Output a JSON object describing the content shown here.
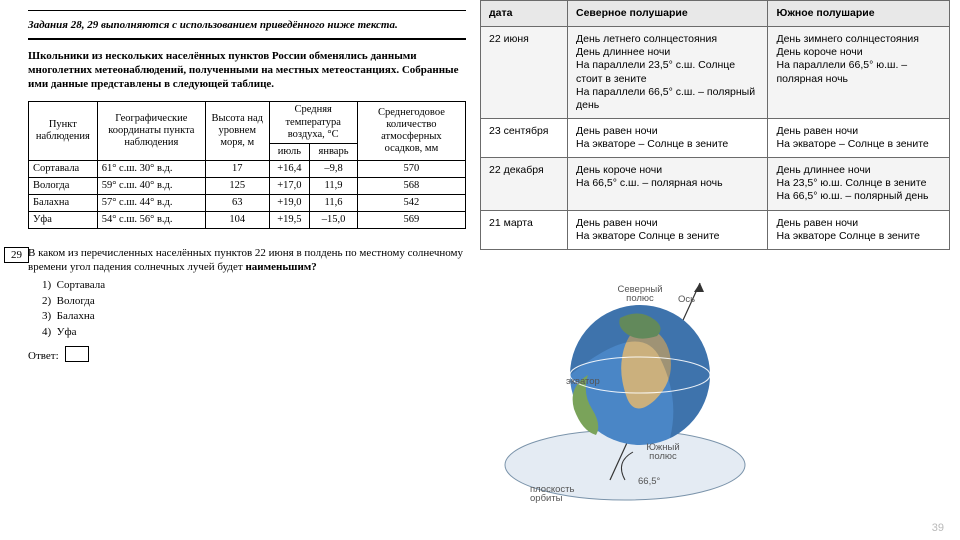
{
  "left": {
    "instruction": "Задания 28, 29 выполняются с использованием приведённого ниже текста.",
    "intro": "Школьники из нескольких населённых пунктов России обменялись данными многолетних метеонаблюдений, полученными на местных метеостанциях. Собранные ими данные представлены в следующей таблице.",
    "table": {
      "headers": {
        "c1": "Пункт наблюдения",
        "c2": "Географические координаты пункта наблюдения",
        "c3": "Высота над уровнем моря, м",
        "c4": "Средняя температура воздуха, °C",
        "c4a": "июль",
        "c4b": "январь",
        "c5": "Среднегодовое количество атмосферных осадков, мм"
      },
      "rows": [
        {
          "name": "Сортавала",
          "coord": "61° с.ш. 30° в.д.",
          "h": "17",
          "jul": "+16,4",
          "jan": "–9,8",
          "p": "570"
        },
        {
          "name": "Вологда",
          "coord": "59° с.ш. 40° в.д.",
          "h": "125",
          "jul": "+17,0",
          "jan": "11,9",
          "p": "568"
        },
        {
          "name": "Балахна",
          "coord": "57° с.ш. 44° в.д.",
          "h": "63",
          "jul": "+19,0",
          "jan": "11,6",
          "p": "542"
        },
        {
          "name": "Уфа",
          "coord": "54° с.ш. 56° в.д.",
          "h": "104",
          "jul": "+19,5",
          "jan": "–15,0",
          "p": "569"
        }
      ]
    },
    "q": {
      "num": "29",
      "text": "В каком из перечисленных населённых пунктов 22 июня в полдень по местному солнечному времени угол падения солнечных лучей будет ",
      "text_bold": "наименьшим?",
      "options": [
        "Сортавала",
        "Вологда",
        "Балахна",
        "Уфа"
      ],
      "answer_label": "Ответ:"
    }
  },
  "right": {
    "headers": {
      "c1": "дата",
      "c2": "Северное полушарие",
      "c3": "Южное полушарие"
    },
    "rows": [
      {
        "d": "22 июня",
        "n": "День летнего солнцестояния\nДень длиннее ночи\nНа параллели 23,5° с.ш. Солнце стоит в зените\nНа параллели 66,5° с.ш. – полярный день",
        "s": "День зимнего солнцестояния\nДень короче ночи\n На параллели  66,5° ю.ш. – полярная ночь"
      },
      {
        "d": "23 сентября",
        "n": "День равен ночи\nНа экваторе – Солнце в зените",
        "s": "День равен ночи\nНа экваторе – Солнце в зените"
      },
      {
        "d": "22 декабря",
        "n": "День короче ночи\nНа 66,5° с.ш. – полярная ночь",
        "s": "День длиннее ночи\nНа 23,5° ю.ш. Солнце в зените\nНа 66,5° ю.ш. – полярный день"
      },
      {
        "d": "21 марта",
        "n": "День равен ночи\nНа экваторе Солнце в зените",
        "s": "День равен ночи\nНа экваторе Солнце в зените"
      }
    ],
    "globe_labels": {
      "north": "Северный\nполюс",
      "axis": "Ось",
      "equator": "экватор",
      "south": "Южный\nполюс",
      "plane": "плоскость\nорбиты",
      "angle": "66,5°"
    }
  },
  "page_number": "39",
  "colors": {
    "ocean": "#4a86c6",
    "land_green": "#7aa35a",
    "land_tan": "#cbb07d",
    "shadow": "#c9d6e6",
    "ellipse": "#9fb7cc"
  }
}
